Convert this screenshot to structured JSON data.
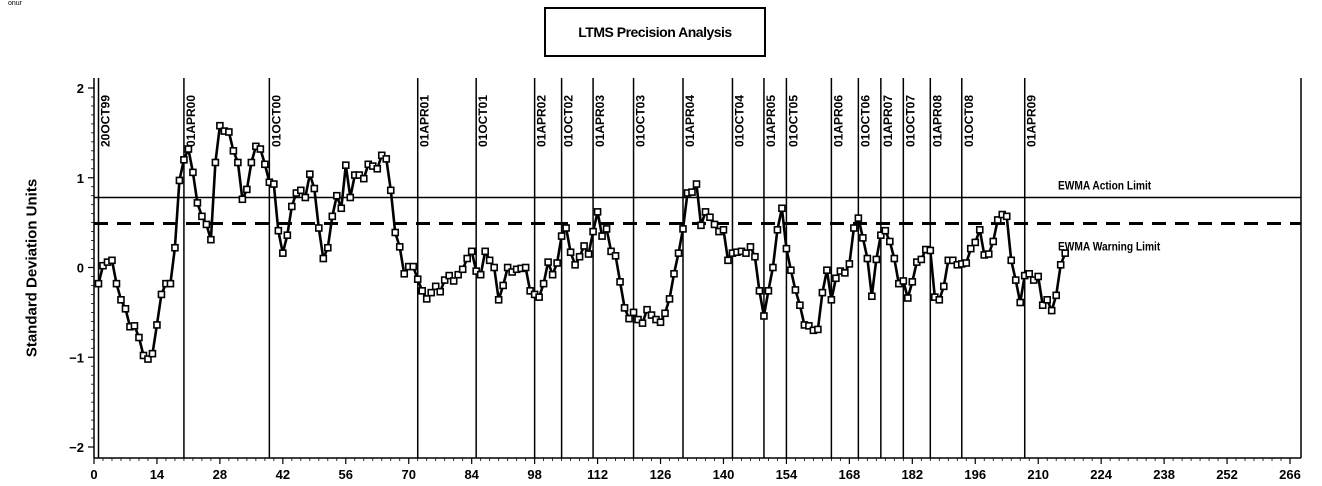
{
  "corner_label": "onur",
  "chart_data": {
    "type": "line",
    "title": "LTMS Precision Analysis",
    "xlabel": "",
    "ylabel": "Standard Deviation Units",
    "xlim": [
      0,
      266
    ],
    "ylim": [
      -2,
      2
    ],
    "xticks": [
      0,
      14,
      28,
      42,
      56,
      70,
      84,
      98,
      112,
      126,
      140,
      154,
      168,
      182,
      196,
      210,
      224,
      238,
      252,
      266
    ],
    "yticks": [
      -2,
      -1,
      0,
      1,
      2
    ],
    "reference_lines": [
      {
        "name": "EWMA Action Limit",
        "y": 0.78,
        "style": "solid"
      },
      {
        "name": "EWMA Warning Limit",
        "y": 0.49,
        "style": "dashed"
      }
    ],
    "date_markers": [
      {
        "x": 1,
        "label": "20OCT99"
      },
      {
        "x": 20,
        "label": "01APR00"
      },
      {
        "x": 39,
        "label": "01OCT00"
      },
      {
        "x": 72,
        "label": "01APR01"
      },
      {
        "x": 85,
        "label": "01OCT01"
      },
      {
        "x": 98,
        "label": "01APR02"
      },
      {
        "x": 104,
        "label": "01OCT02"
      },
      {
        "x": 111,
        "label": "01APR03"
      },
      {
        "x": 120,
        "label": "01OCT03"
      },
      {
        "x": 131,
        "label": "01APR04"
      },
      {
        "x": 142,
        "label": "01OCT04"
      },
      {
        "x": 149,
        "label": "01APR05"
      },
      {
        "x": 154,
        "label": "01OCT05"
      },
      {
        "x": 164,
        "label": "01APR06"
      },
      {
        "x": 170,
        "label": "01OCT06"
      },
      {
        "x": 175,
        "label": "01APR07"
      },
      {
        "x": 180,
        "label": "01OCT07"
      },
      {
        "x": 186,
        "label": "01APR08"
      },
      {
        "x": 193,
        "label": "01OCT08"
      },
      {
        "x": 207,
        "label": "01APR09"
      }
    ],
    "series": [
      {
        "values": [
          [
            1,
            -0.18
          ],
          [
            2,
            0.02
          ],
          [
            3,
            0.06
          ],
          [
            4,
            0.08
          ],
          [
            5,
            -0.18
          ],
          [
            6,
            -0.36
          ],
          [
            7,
            -0.46
          ],
          [
            8,
            -0.66
          ],
          [
            9,
            -0.65
          ],
          [
            10,
            -0.78
          ],
          [
            11,
            -0.98
          ],
          [
            12,
            -1.02
          ],
          [
            13,
            -0.96
          ],
          [
            14,
            -0.64
          ],
          [
            15,
            -0.3
          ],
          [
            16,
            -0.18
          ],
          [
            17,
            -0.18
          ],
          [
            18,
            0.22
          ],
          [
            19,
            0.97
          ],
          [
            20,
            1.2
          ],
          [
            21,
            1.32
          ],
          [
            22,
            1.06
          ],
          [
            23,
            0.72
          ],
          [
            24,
            0.57
          ],
          [
            25,
            0.48
          ],
          [
            26,
            0.31
          ],
          [
            27,
            1.17
          ],
          [
            28,
            1.58
          ],
          [
            29,
            1.52
          ],
          [
            30,
            1.51
          ],
          [
            31,
            1.3
          ],
          [
            32,
            1.17
          ],
          [
            33,
            0.76
          ],
          [
            34,
            0.87
          ],
          [
            35,
            1.17
          ],
          [
            36,
            1.35
          ],
          [
            37,
            1.32
          ],
          [
            38,
            1.15
          ],
          [
            39,
            0.95
          ],
          [
            40,
            0.93
          ],
          [
            41,
            0.41
          ],
          [
            42,
            0.16
          ],
          [
            43,
            0.36
          ],
          [
            44,
            0.68
          ],
          [
            45,
            0.83
          ],
          [
            46,
            0.86
          ],
          [
            47,
            0.78
          ],
          [
            48,
            1.04
          ],
          [
            49,
            0.88
          ],
          [
            50,
            0.44
          ],
          [
            51,
            0.1
          ],
          [
            52,
            0.22
          ],
          [
            53,
            0.57
          ],
          [
            54,
            0.8
          ],
          [
            55,
            0.66
          ],
          [
            56,
            1.14
          ],
          [
            57,
            0.78
          ],
          [
            58,
            1.03
          ],
          [
            59,
            1.03
          ],
          [
            60,
            0.99
          ],
          [
            61,
            1.15
          ],
          [
            62,
            1.13
          ],
          [
            63,
            1.1
          ],
          [
            64,
            1.25
          ],
          [
            65,
            1.21
          ],
          [
            66,
            0.86
          ],
          [
            67,
            0.39
          ],
          [
            68,
            0.23
          ],
          [
            69,
            -0.07
          ],
          [
            70,
            0.01
          ],
          [
            71,
            0.01
          ],
          [
            72,
            -0.13
          ],
          [
            73,
            -0.26
          ],
          [
            74,
            -0.35
          ],
          [
            75,
            -0.28
          ],
          [
            76,
            -0.21
          ],
          [
            77,
            -0.27
          ],
          [
            78,
            -0.14
          ],
          [
            79,
            -0.09
          ],
          [
            80,
            -0.15
          ],
          [
            81,
            -0.08
          ],
          [
            82,
            -0.02
          ],
          [
            83,
            0.1
          ],
          [
            84,
            0.18
          ],
          [
            85,
            -0.04
          ],
          [
            86,
            -0.08
          ],
          [
            87,
            0.18
          ],
          [
            88,
            0.08
          ],
          [
            89,
            0.0
          ],
          [
            90,
            -0.36
          ],
          [
            91,
            -0.2
          ],
          [
            92,
            0.0
          ],
          [
            93,
            -0.05
          ],
          [
            94,
            -0.02
          ],
          [
            95,
            -0.01
          ],
          [
            96,
            0.0
          ],
          [
            97,
            -0.26
          ],
          [
            98,
            -0.3
          ],
          [
            99,
            -0.33
          ],
          [
            100,
            -0.18
          ],
          [
            101,
            0.06
          ],
          [
            102,
            -0.08
          ],
          [
            103,
            0.05
          ],
          [
            104,
            0.35
          ],
          [
            105,
            0.44
          ],
          [
            106,
            0.17
          ],
          [
            107,
            0.03
          ],
          [
            108,
            0.12
          ],
          [
            109,
            0.24
          ],
          [
            110,
            0.15
          ],
          [
            111,
            0.4
          ],
          [
            112,
            0.62
          ],
          [
            113,
            0.35
          ],
          [
            114,
            0.43
          ],
          [
            115,
            0.18
          ],
          [
            116,
            0.13
          ],
          [
            117,
            -0.16
          ],
          [
            118,
            -0.45
          ],
          [
            119,
            -0.57
          ],
          [
            120,
            -0.5
          ],
          [
            121,
            -0.58
          ],
          [
            122,
            -0.62
          ],
          [
            123,
            -0.47
          ],
          [
            124,
            -0.53
          ],
          [
            125,
            -0.58
          ],
          [
            126,
            -0.61
          ],
          [
            127,
            -0.51
          ],
          [
            128,
            -0.35
          ],
          [
            129,
            -0.07
          ],
          [
            130,
            0.16
          ],
          [
            131,
            0.43
          ],
          [
            132,
            0.83
          ],
          [
            133,
            0.84
          ],
          [
            134,
            0.93
          ],
          [
            135,
            0.47
          ],
          [
            136,
            0.62
          ],
          [
            137,
            0.56
          ],
          [
            138,
            0.48
          ],
          [
            139,
            0.4
          ],
          [
            140,
            0.42
          ],
          [
            141,
            0.08
          ],
          [
            142,
            0.16
          ],
          [
            143,
            0.17
          ],
          [
            144,
            0.18
          ],
          [
            145,
            0.16
          ],
          [
            146,
            0.23
          ],
          [
            147,
            0.12
          ],
          [
            148,
            -0.26
          ],
          [
            149,
            -0.54
          ],
          [
            150,
            -0.26
          ],
          [
            151,
            0.0
          ],
          [
            152,
            0.42
          ],
          [
            153,
            0.66
          ],
          [
            154,
            0.21
          ],
          [
            155,
            -0.03
          ],
          [
            156,
            -0.25
          ],
          [
            157,
            -0.42
          ],
          [
            158,
            -0.64
          ],
          [
            159,
            -0.65
          ],
          [
            160,
            -0.7
          ],
          [
            161,
            -0.69
          ],
          [
            162,
            -0.28
          ],
          [
            163,
            -0.03
          ],
          [
            164,
            -0.36
          ],
          [
            165,
            -0.12
          ],
          [
            166,
            -0.04
          ],
          [
            167,
            -0.06
          ],
          [
            168,
            0.04
          ],
          [
            169,
            0.44
          ],
          [
            170,
            0.55
          ],
          [
            171,
            0.33
          ],
          [
            172,
            0.1
          ],
          [
            173,
            -0.32
          ],
          [
            174,
            0.09
          ],
          [
            175,
            0.36
          ],
          [
            176,
            0.41
          ],
          [
            177,
            0.29
          ],
          [
            178,
            0.1
          ],
          [
            179,
            -0.18
          ],
          [
            180,
            -0.15
          ],
          [
            181,
            -0.34
          ],
          [
            182,
            -0.16
          ],
          [
            183,
            0.06
          ],
          [
            184,
            0.09
          ],
          [
            185,
            0.2
          ],
          [
            186,
            0.19
          ],
          [
            187,
            -0.33
          ],
          [
            188,
            -0.36
          ],
          [
            189,
            -0.21
          ],
          [
            190,
            0.08
          ],
          [
            191,
            0.08
          ],
          [
            192,
            0.03
          ],
          [
            193,
            0.04
          ],
          [
            194,
            0.05
          ],
          [
            195,
            0.21
          ],
          [
            196,
            0.28
          ],
          [
            197,
            0.42
          ],
          [
            198,
            0.14
          ],
          [
            199,
            0.15
          ],
          [
            200,
            0.29
          ],
          [
            201,
            0.53
          ],
          [
            202,
            0.59
          ],
          [
            203,
            0.57
          ],
          [
            204,
            0.08
          ],
          [
            205,
            -0.14
          ],
          [
            206,
            -0.39
          ],
          [
            207,
            -0.09
          ],
          [
            208,
            -0.07
          ],
          [
            209,
            -0.14
          ],
          [
            210,
            -0.1
          ],
          [
            211,
            -0.42
          ],
          [
            212,
            -0.36
          ],
          [
            213,
            -0.48
          ],
          [
            214,
            -0.31
          ],
          [
            215,
            0.03
          ],
          [
            216,
            0.16
          ]
        ]
      }
    ]
  }
}
